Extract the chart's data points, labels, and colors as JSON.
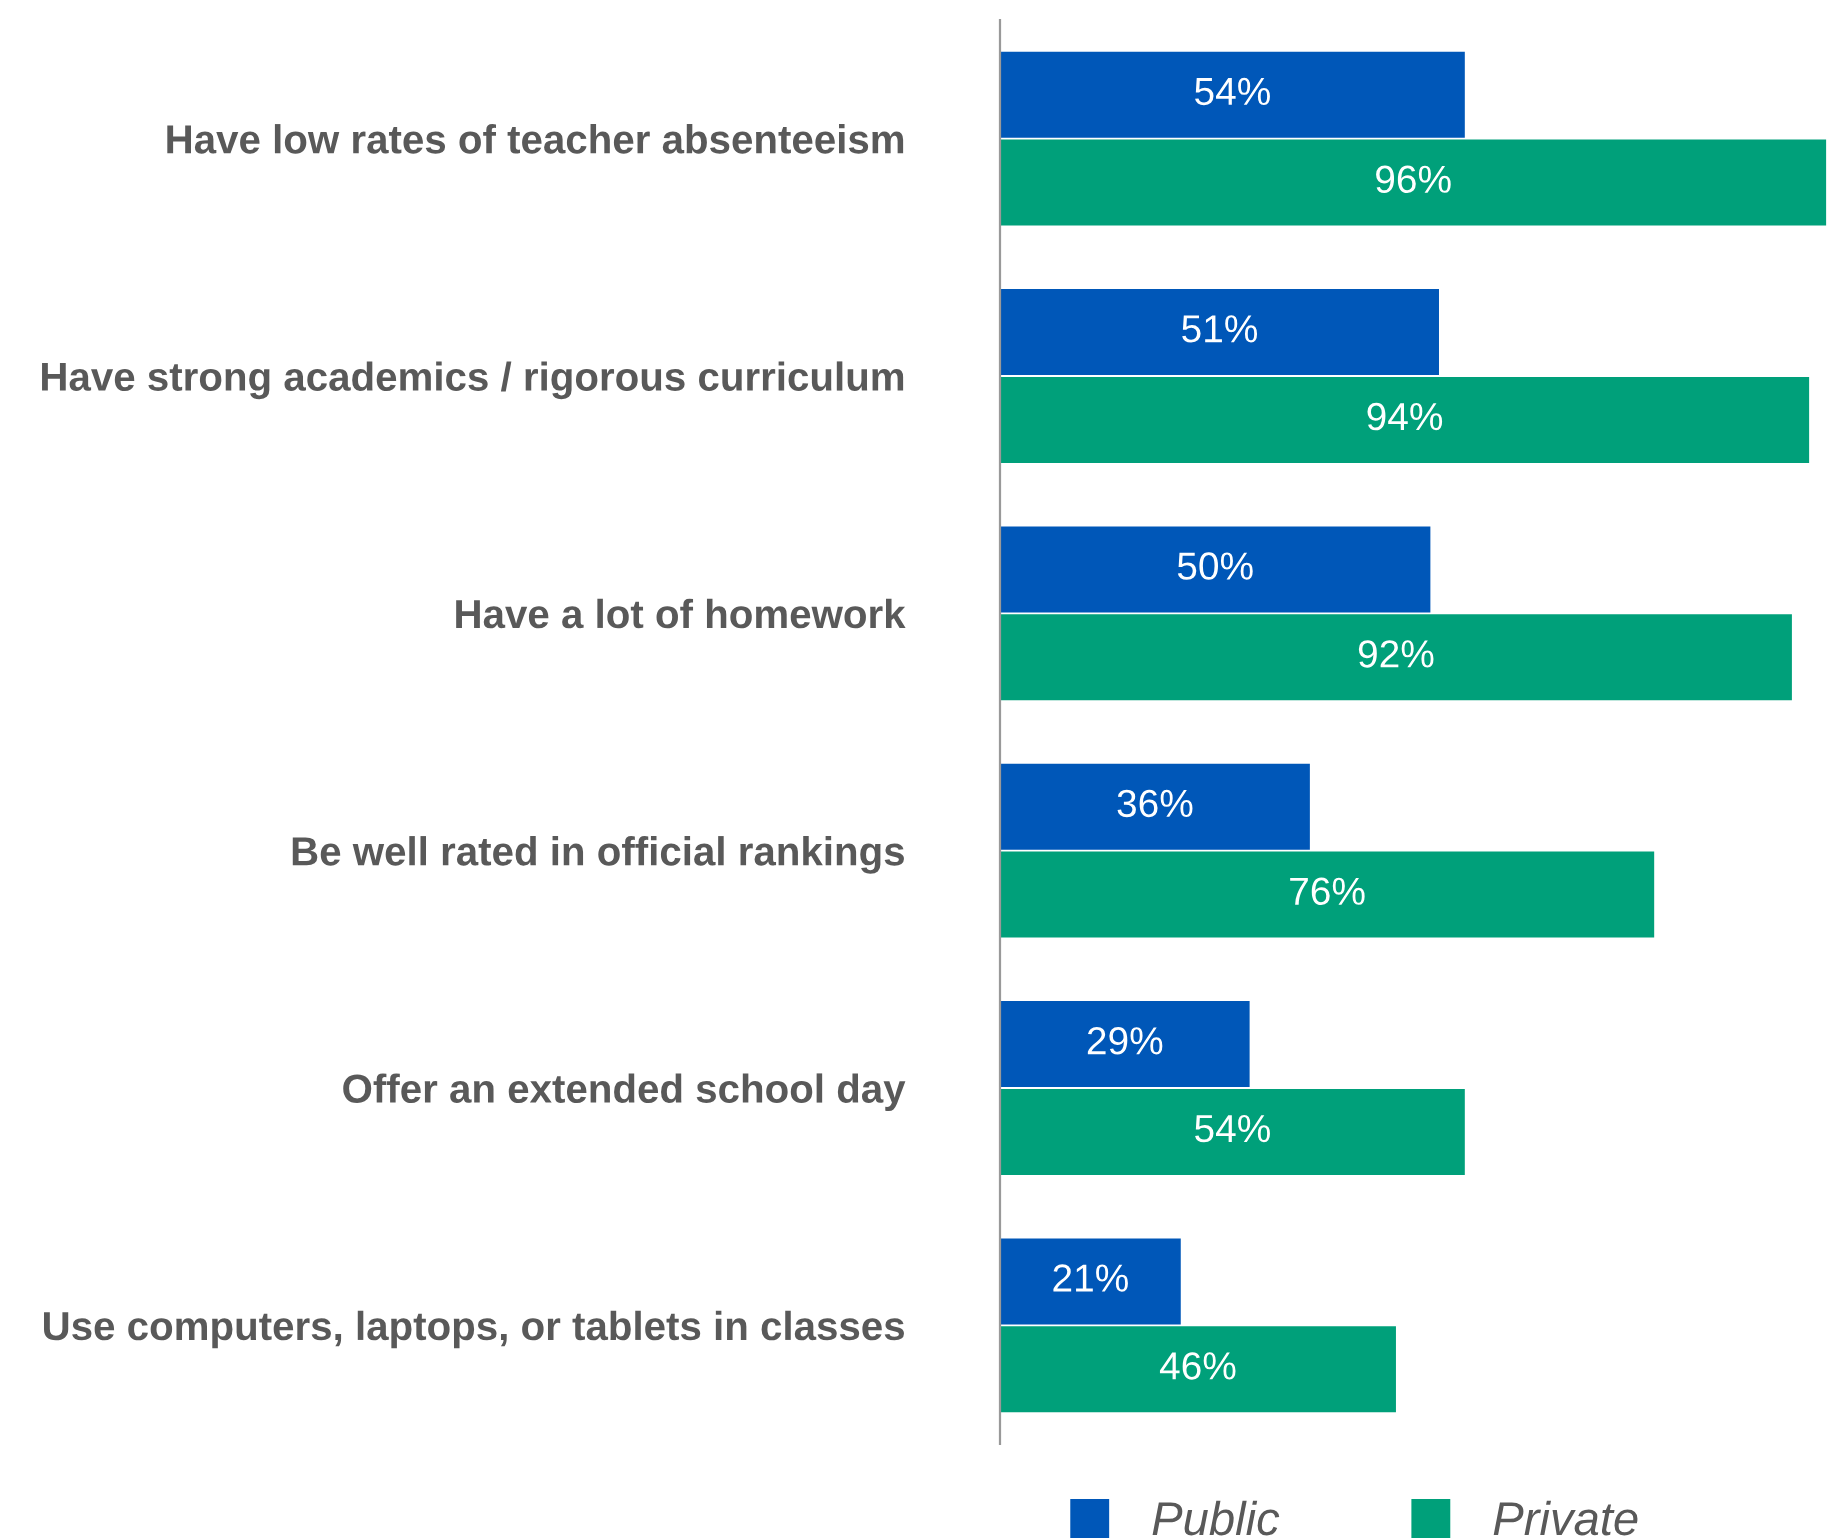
{
  "chart_data": {
    "type": "bar",
    "orientation": "horizontal",
    "categories": [
      "Have low rates of teacher absenteeism",
      "Have strong academics / rigorous curriculum",
      "Have a lot of homework",
      "Be well rated in official rankings",
      "Offer an extended school day",
      "Use computers, laptops, or tablets in classes"
    ],
    "series": [
      {
        "name": "Public",
        "color": "#0057b8",
        "values": [
          54,
          51,
          50,
          36,
          29,
          21
        ],
        "value_labels": [
          "54%",
          "51%",
          "50%",
          "36%",
          "29%",
          "21%"
        ]
      },
      {
        "name": "Private",
        "color": "#00a07a",
        "values": [
          96,
          94,
          92,
          76,
          54,
          46
        ],
        "value_labels": [
          "96%",
          "94%",
          "92%",
          "76%",
          "54%",
          "46%"
        ]
      }
    ],
    "legend": "bottom",
    "grid": false
  }
}
